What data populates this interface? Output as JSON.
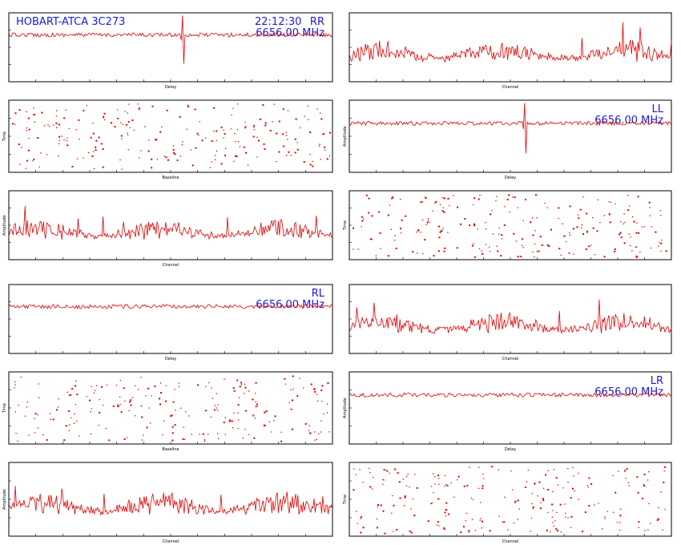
{
  "header": {
    "source": "HOBART-ATCA 3C273",
    "time": "22:12:30"
  },
  "chart_data": [
    {
      "type": "line",
      "panel": "RR-delay",
      "polarization": "RR",
      "freq": "6656.00 MHz",
      "xlabel": "Delay",
      "ylabel": "",
      "spike_at": 0.535
    },
    {
      "type": "line",
      "panel": "RR-channel",
      "xlabel": "Channel",
      "ylabel": ""
    },
    {
      "type": "scatter",
      "panel": "RR-time",
      "xlabel": "Baseline",
      "ylabel": "Time"
    },
    {
      "type": "line",
      "panel": "LL-delay",
      "polarization": "LL",
      "freq": "6656.00 MHz",
      "xlabel": "Delay",
      "ylabel": "Amplitude",
      "spike_at": 0.545
    },
    {
      "type": "line",
      "panel": "LL-channel",
      "xlabel": "Channel",
      "ylabel": "Amplitude"
    },
    {
      "type": "scatter",
      "panel": "LL-time",
      "xlabel": "",
      "ylabel": "Time"
    },
    {
      "type": "line",
      "panel": "RL-delay",
      "polarization": "RL",
      "freq": "6656.00 MHz",
      "xlabel": "Delay",
      "ylabel": ""
    },
    {
      "type": "line",
      "panel": "RL-channel",
      "xlabel": "Channel",
      "ylabel": ""
    },
    {
      "type": "scatter",
      "panel": "RL-time",
      "xlabel": "Baseline",
      "ylabel": "Time"
    },
    {
      "type": "line",
      "panel": "LR-delay",
      "polarization": "LR",
      "freq": "6656.00 MHz",
      "xlabel": "Delay",
      "ylabel": "Amplitude"
    },
    {
      "type": "line",
      "panel": "LR-channel",
      "xlabel": "Channel",
      "ylabel": "Amplitude"
    },
    {
      "type": "scatter",
      "panel": "LR-time",
      "xlabel": "Channel",
      "ylabel": "Time"
    }
  ],
  "colors": {
    "trace": "#e00000",
    "annotation": "#1a1adf",
    "axis": "#000000"
  }
}
